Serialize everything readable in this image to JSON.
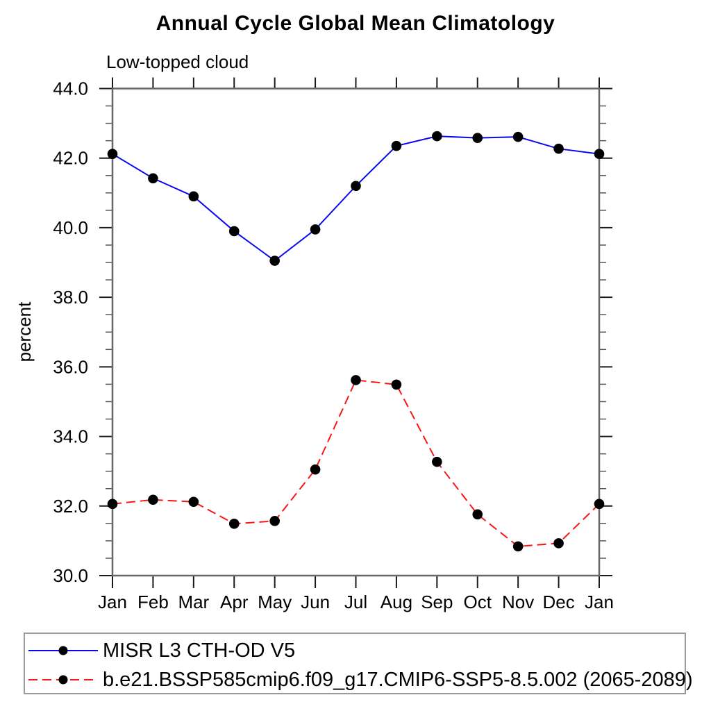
{
  "chart_data": {
    "type": "line",
    "title": "Annual Cycle Global Mean Climatology",
    "subtitle": "Low-topped cloud",
    "ylabel": "percent",
    "xlabel": "",
    "x_categories": [
      "Jan",
      "Feb",
      "Mar",
      "Apr",
      "May",
      "Jun",
      "Jul",
      "Aug",
      "Sep",
      "Oct",
      "Nov",
      "Dec",
      "Jan"
    ],
    "ylim": [
      30.0,
      44.0
    ],
    "ytick_interval": 2.0,
    "minor_tick_interval": 0.5,
    "ytick_labels": [
      "30.0",
      "32.0",
      "34.0",
      "36.0",
      "38.0",
      "40.0",
      "42.0",
      "44.0"
    ],
    "grid": false,
    "legend_position": "bottom",
    "axis_color": "#666666",
    "tick_color": "#1a1a1a",
    "series": [
      {
        "name": "MISR L3 CTH-OD V5",
        "color": "#0808f0",
        "line_style": "solid",
        "marker": "filled-circle",
        "marker_color": "#000000",
        "values": [
          42.12,
          41.42,
          40.9,
          39.9,
          39.05,
          39.95,
          41.2,
          42.35,
          42.63,
          42.58,
          42.61,
          42.27,
          42.12
        ]
      },
      {
        "name": "b.e21.BSSP585cmip6.f09_g17.CMIP6-SSP5-8.5.002 (2065-2089)",
        "color": "#f81515",
        "line_style": "dashed",
        "marker": "filled-circle",
        "marker_color": "#000000",
        "values": [
          32.06,
          32.18,
          32.12,
          31.49,
          31.57,
          33.05,
          35.62,
          35.49,
          33.27,
          31.76,
          30.84,
          30.93,
          32.06
        ]
      }
    ]
  }
}
